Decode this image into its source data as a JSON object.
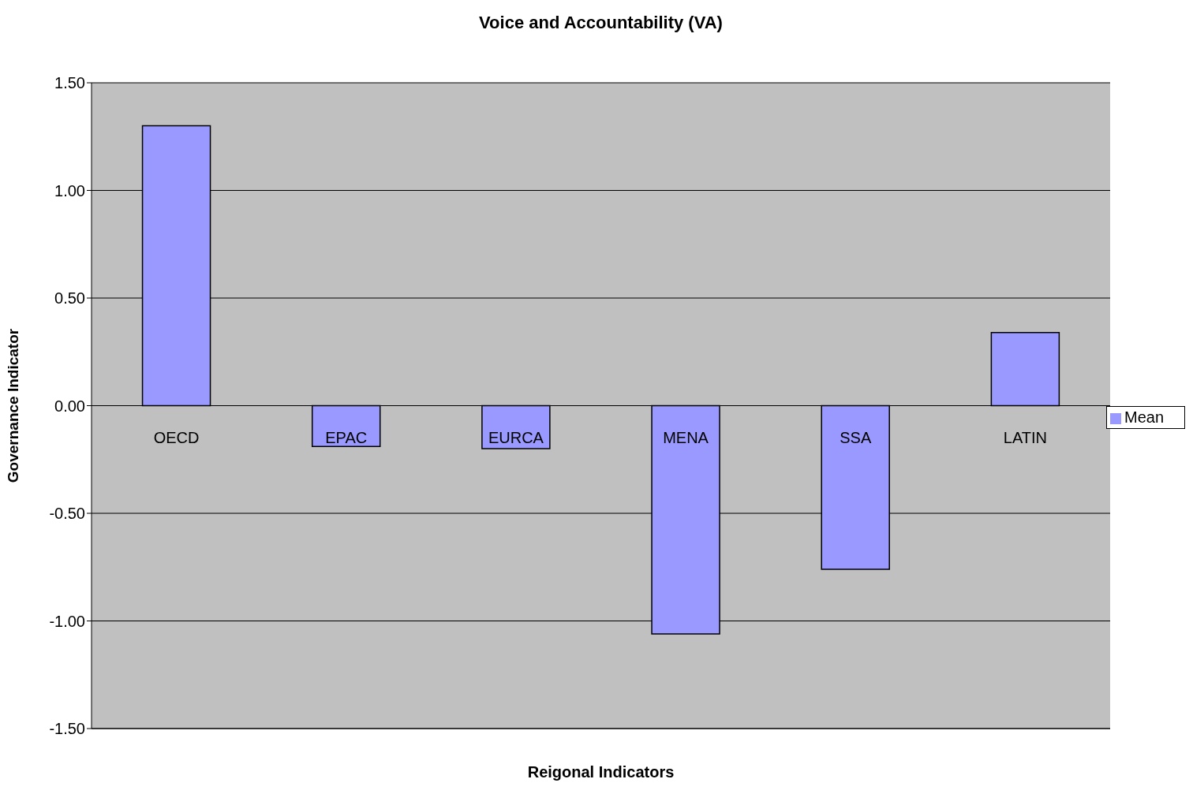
{
  "chart_data": {
    "type": "bar",
    "title": "Voice and Accountability (VA)",
    "xlabel": "Reigonal Indicators",
    "ylabel": "Governance Indicator",
    "categories": [
      "OECD",
      "EPAC",
      "EURCA",
      "MENA",
      "SSA",
      "LATIN"
    ],
    "series": [
      {
        "name": "Mean",
        "color": "#9999ff",
        "values": [
          1.3,
          -0.19,
          -0.2,
          -1.06,
          -0.76,
          0.34
        ]
      }
    ],
    "ylim": [
      -1.5,
      1.5
    ],
    "yticks": [
      {
        "value": -1.5,
        "label": "-1.50"
      },
      {
        "value": -1,
        "label": "-1.00"
      },
      {
        "value": -0.5,
        "label": "-0.50"
      },
      {
        "value": 0,
        "label": "0.00"
      },
      {
        "value": 0.5,
        "label": "0.50"
      },
      {
        "value": 1,
        "label": "1.00"
      },
      {
        "value": 1.5,
        "label": "1.50"
      }
    ],
    "grid": "y",
    "legend": "right"
  }
}
